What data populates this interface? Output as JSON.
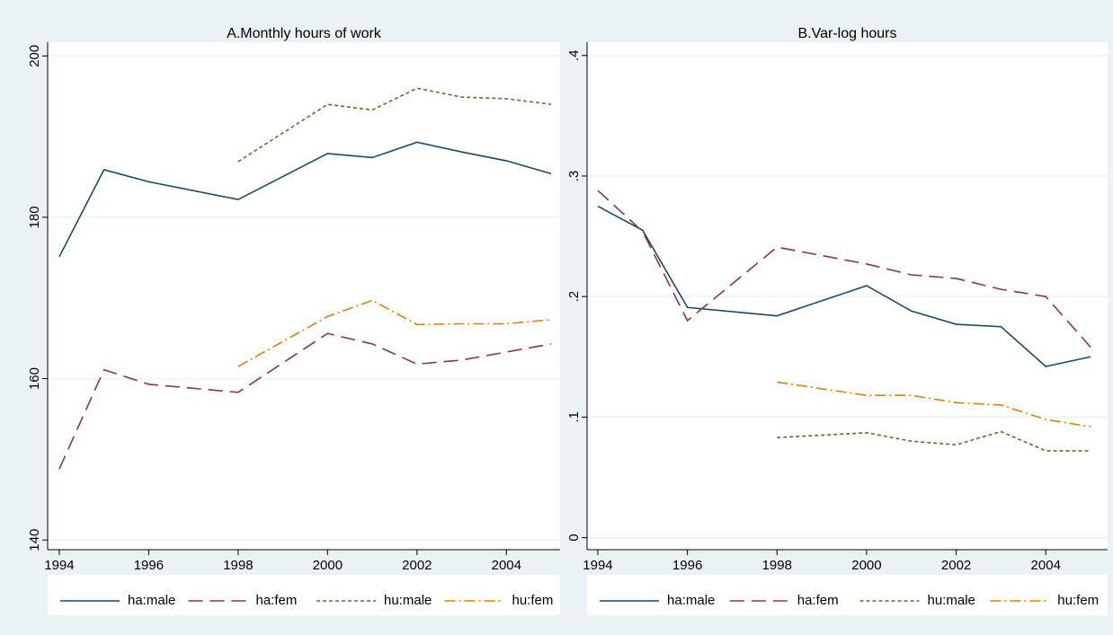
{
  "chart_data": [
    {
      "type": "line",
      "title": "A.Monthly hours of work",
      "x": [
        1994,
        1995,
        1996,
        1998,
        2000,
        2001,
        2002,
        2003,
        2004,
        2005
      ],
      "xlim": [
        1993.74,
        2005.2
      ],
      "xticks": [
        1994,
        1996,
        1998,
        2000,
        2002,
        2004
      ],
      "ylim": [
        138.8,
        201.7
      ],
      "yticks": [
        140,
        160,
        180,
        200
      ],
      "grid": true,
      "legend": "bottom",
      "series": [
        {
          "name": "ha:male",
          "color": "#1a476f",
          "dash": "solid",
          "values": [
            175.1,
            185.9,
            184.4,
            182.2,
            187.9,
            187.4,
            189.3,
            188.1,
            187.0,
            185.4
          ]
        },
        {
          "name": "ha:fem",
          "color": "#90353b",
          "dash": "longdash",
          "values": [
            148.8,
            161.1,
            159.3,
            158.3,
            165.6,
            164.3,
            161.8,
            162.3,
            163.3,
            164.3
          ]
        },
        {
          "name": "hu:male",
          "color": "#55752f",
          "dash": "shortdash",
          "values": [
            null,
            null,
            null,
            186.9,
            194.0,
            193.3,
            196.0,
            194.9,
            194.7,
            194.0
          ]
        },
        {
          "name": "hu:fem",
          "color": "#e37e00",
          "dash": "dashdot",
          "values": [
            null,
            null,
            null,
            161.5,
            167.7,
            169.7,
            166.7,
            166.8,
            166.8,
            167.3
          ]
        }
      ]
    },
    {
      "type": "line",
      "title": "B.Var-log hours",
      "x": [
        1994,
        1995,
        1996,
        1998,
        2000,
        2001,
        2002,
        2003,
        2004,
        2005
      ],
      "xlim": [
        1993.76,
        2005.38
      ],
      "xticks": [
        1994,
        1996,
        1998,
        2000,
        2002,
        2004
      ],
      "ylim": [
        -0.01,
        0.411
      ],
      "yticks": [
        0,
        {
          "value": 0.1,
          "label": ".1"
        },
        {
          "value": 0.2,
          "label": ".2"
        },
        {
          "value": 0.3,
          "label": ".3"
        },
        {
          "value": 0.4,
          "label": ".4"
        }
      ],
      "grid": true,
      "legend": "bottom",
      "series": [
        {
          "name": "ha:male",
          "color": "#1a476f",
          "dash": "solid",
          "values": [
            0.275,
            0.255,
            0.191,
            0.184,
            0.209,
            0.188,
            0.177,
            0.175,
            0.142,
            0.15
          ]
        },
        {
          "name": "ha:fem",
          "color": "#90353b",
          "dash": "longdash",
          "values": [
            0.288,
            0.254,
            0.18,
            0.241,
            0.227,
            0.218,
            0.215,
            0.206,
            0.2,
            0.158
          ]
        },
        {
          "name": "hu:male",
          "color": "#55752f",
          "dash": "shortdash",
          "values": [
            null,
            null,
            null,
            0.083,
            0.087,
            0.08,
            0.077,
            0.088,
            0.072,
            0.072
          ]
        },
        {
          "name": "hu:fem",
          "color": "#e37e00",
          "dash": "dashdot",
          "values": [
            null,
            null,
            null,
            0.129,
            0.118,
            0.118,
            0.112,
            0.11,
            0.098,
            0.092
          ]
        }
      ]
    }
  ]
}
